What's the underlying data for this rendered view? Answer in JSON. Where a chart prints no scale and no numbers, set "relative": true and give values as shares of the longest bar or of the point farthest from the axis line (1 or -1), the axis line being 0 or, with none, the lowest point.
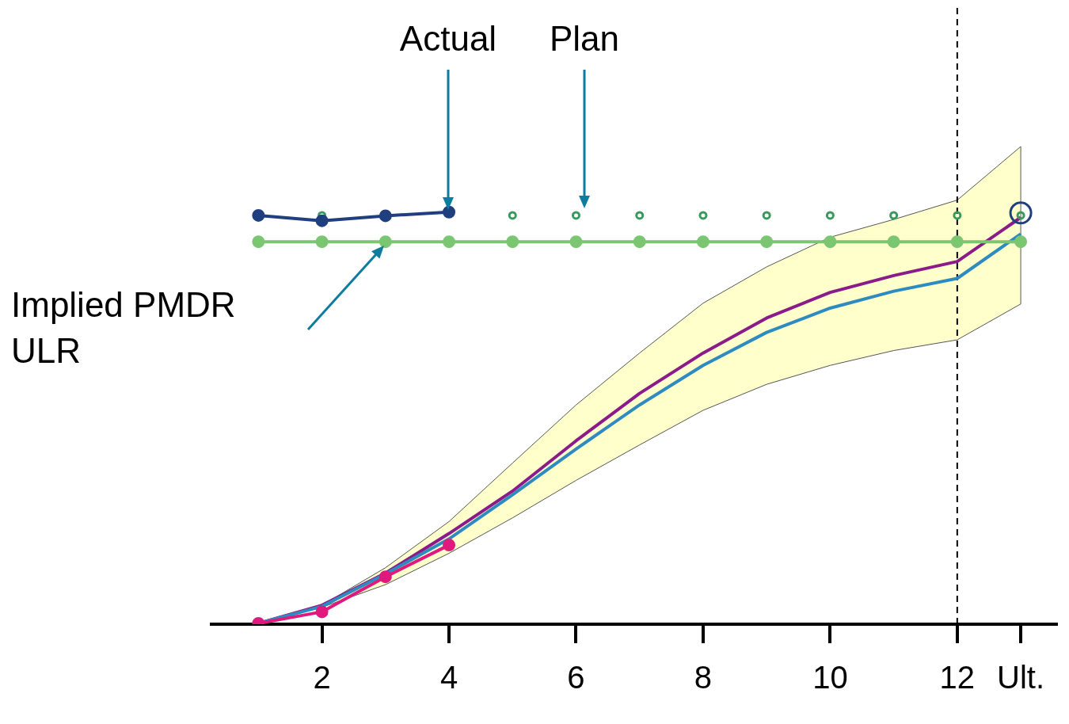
{
  "chart_data": {
    "type": "line",
    "relative": true,
    "xlim": [
      0.26,
      13.56
    ],
    "xticks": [
      2,
      4,
      6,
      8,
      10,
      12,
      {
        "value": 13,
        "label": "Ult."
      }
    ],
    "grid": false,
    "legend": false,
    "tick_labels": "x",
    "x": [
      1,
      2,
      3,
      4,
      5,
      6,
      7,
      8,
      9,
      10,
      11,
      12,
      13
    ],
    "series": [
      {
        "color": "#8b1a8b",
        "marker": "none",
        "values": [
          0.002,
          0.046,
          0.124,
          0.22,
          0.323,
          0.445,
          0.56,
          0.658,
          0.743,
          0.805,
          0.846,
          0.88,
          0.987
        ],
        "lower": [
          0.002,
          0.041,
          0.096,
          0.172,
          0.258,
          0.349,
          0.435,
          0.519,
          0.582,
          0.628,
          0.664,
          0.69,
          0.777
        ],
        "upper": [
          0,
          0.046,
          0.137,
          0.249,
          0.391,
          0.532,
          0.658,
          0.779,
          0.867,
          0.939,
          0.982,
          1.029,
          1.159
        ]
      },
      {
        "color": "#2e8bc0",
        "marker": "none",
        "values": [
          0.002,
          0.043,
          0.122,
          0.207,
          0.314,
          0.425,
          0.532,
          0.628,
          0.708,
          0.767,
          0.808,
          0.839,
          0.947
        ]
      },
      {
        "type": "scatter",
        "color": "#3a9a5b",
        "marker": "circle",
        "values": [
          null,
          0.992,
          null,
          null,
          0.992,
          0.992,
          0.992,
          0.992,
          0.992,
          0.992,
          0.992,
          0.992,
          0.992
        ]
      },
      {
        "color": "#7bc671",
        "marker": "circle",
        "values": [
          0.928,
          0.928,
          0.928,
          0.928,
          0.928,
          0.928,
          0.928,
          0.928,
          0.928,
          0.928,
          0.928,
          0.928,
          0.928
        ]
      },
      {
        "color": "#e0197f",
        "marker": "circle",
        "x": [
          1,
          2,
          3,
          4
        ],
        "values": [
          0.002,
          0.03,
          0.115,
          0.192
        ]
      },
      {
        "color": "#1f3f7f",
        "marker": "circle",
        "x": [
          1,
          2,
          3,
          4
        ],
        "values": [
          0.992,
          0.979,
          0.991,
          1
        ]
      },
      {
        "type": "scatter",
        "color": "#1f3f7f",
        "marker": "circle",
        "x": [
          13
        ],
        "values": [
          0.998
        ]
      }
    ],
    "ref_lines": [
      {
        "axis": "x",
        "value": 12,
        "color": "#000000",
        "line_style": "dashed"
      }
    ],
    "annotations": [
      "Actual",
      "Plan",
      "Implied PMDR ULR"
    ]
  }
}
